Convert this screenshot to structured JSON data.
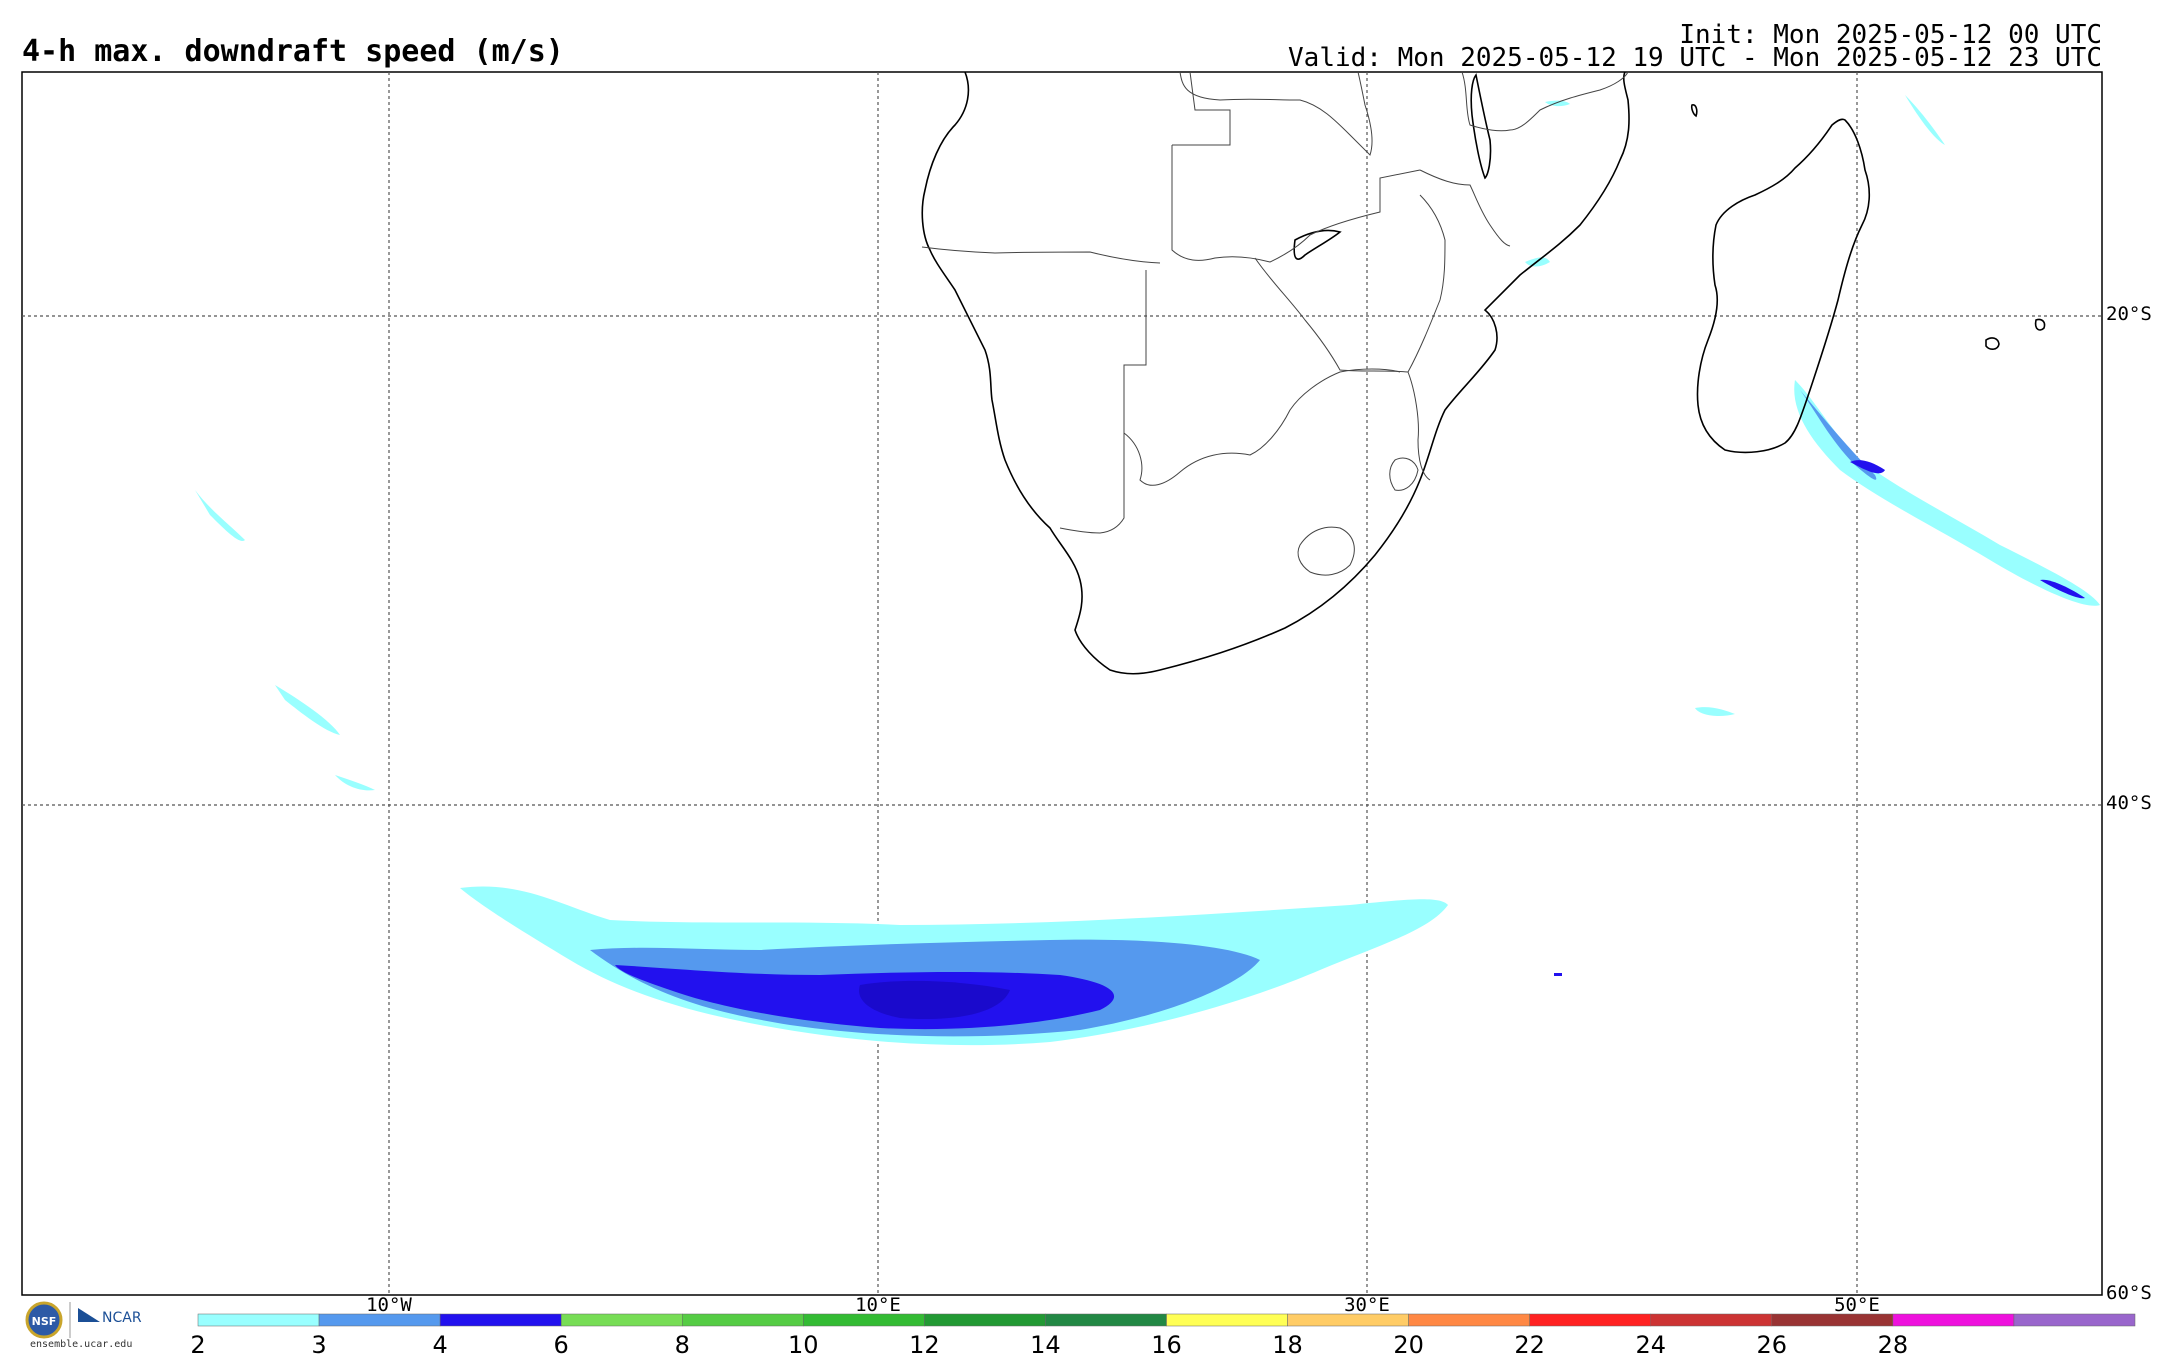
{
  "header": {
    "title": "4-h max. downdraft speed (m/s)",
    "init": "Init: Mon 2025-05-12 00 UTC",
    "valid": "Valid: Mon 2025-05-12 19 UTC - Mon 2025-05-12 23 UTC"
  },
  "axes": {
    "lat_labels": [
      "20°S",
      "40°S",
      "60°S"
    ],
    "lon_labels": [
      "10°W",
      "10°E",
      "30°E",
      "50°E"
    ]
  },
  "colorbar": {
    "ticks": [
      "2",
      "3",
      "4",
      "6",
      "8",
      "10",
      "12",
      "14",
      "16",
      "18",
      "20",
      "22",
      "24",
      "26",
      "28"
    ],
    "colors": [
      "#99ffff",
      "#5599ee",
      "#2211ee",
      "#77dd55",
      "#55cc44",
      "#33bb33",
      "#229933",
      "#228844",
      "#ffff55",
      "#ffcc66",
      "#ff8844",
      "#ff2222",
      "#cc3333",
      "#993333",
      "#ee11dd",
      "#9966cc"
    ]
  },
  "logo": {
    "org": "NCAR",
    "site": "ensemble.ucar.edu"
  },
  "colors": {
    "light": "#99ffff",
    "mid": "#5599ee",
    "dark": "#2211ee"
  }
}
